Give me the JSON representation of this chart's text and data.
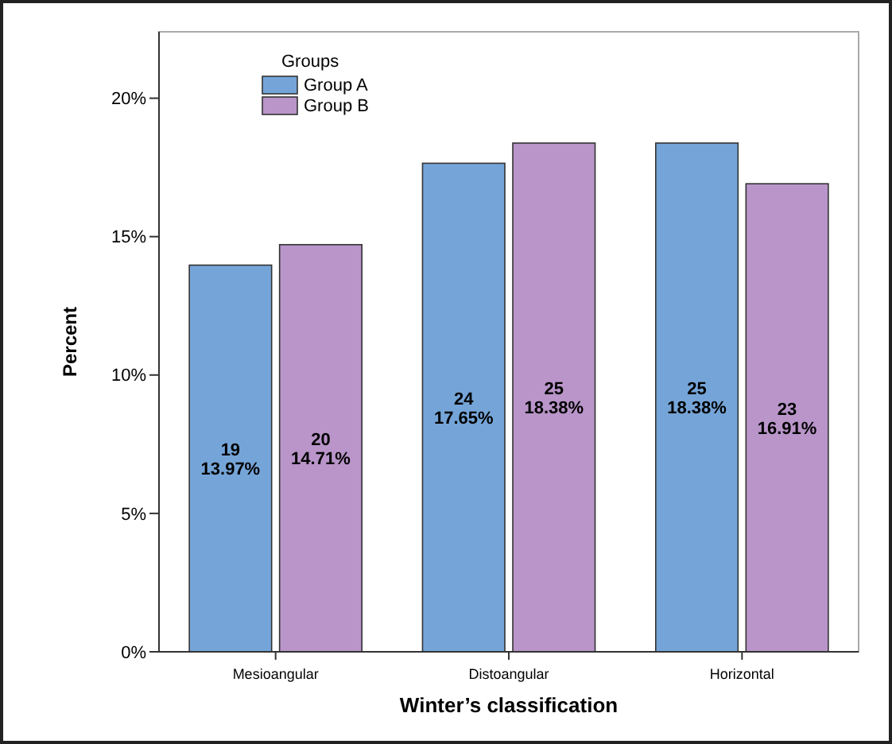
{
  "chart_data": {
    "type": "bar",
    "xlabel": "Winter’s classification",
    "ylabel": "Percent",
    "legend_title": "Groups",
    "legend": "top left",
    "categories": [
      "Mesioangular",
      "Distoangular",
      "Horizontal"
    ],
    "series": [
      {
        "name": "Group A",
        "color": "#75a5d8",
        "values": [
          13.97,
          17.65,
          18.38
        ],
        "value_labels": [
          "19\n13.97%",
          "24\n17.65%",
          "25\n18.38%"
        ]
      },
      {
        "name": "Group B",
        "color": "#b995c9",
        "values": [
          14.71,
          18.38,
          16.91
        ],
        "value_labels": [
          "20\n14.71%",
          "25\n18.38%",
          "23\n16.91%"
        ]
      }
    ],
    "ylim": [
      0,
      22.4
    ],
    "yticks": [
      {
        "value": 0,
        "label": "0%"
      },
      {
        "value": 5,
        "label": "5%"
      },
      {
        "value": 10,
        "label": "10%"
      },
      {
        "value": 15,
        "label": "15%"
      },
      {
        "value": 20,
        "label": "20%"
      }
    ],
    "grid": false
  }
}
